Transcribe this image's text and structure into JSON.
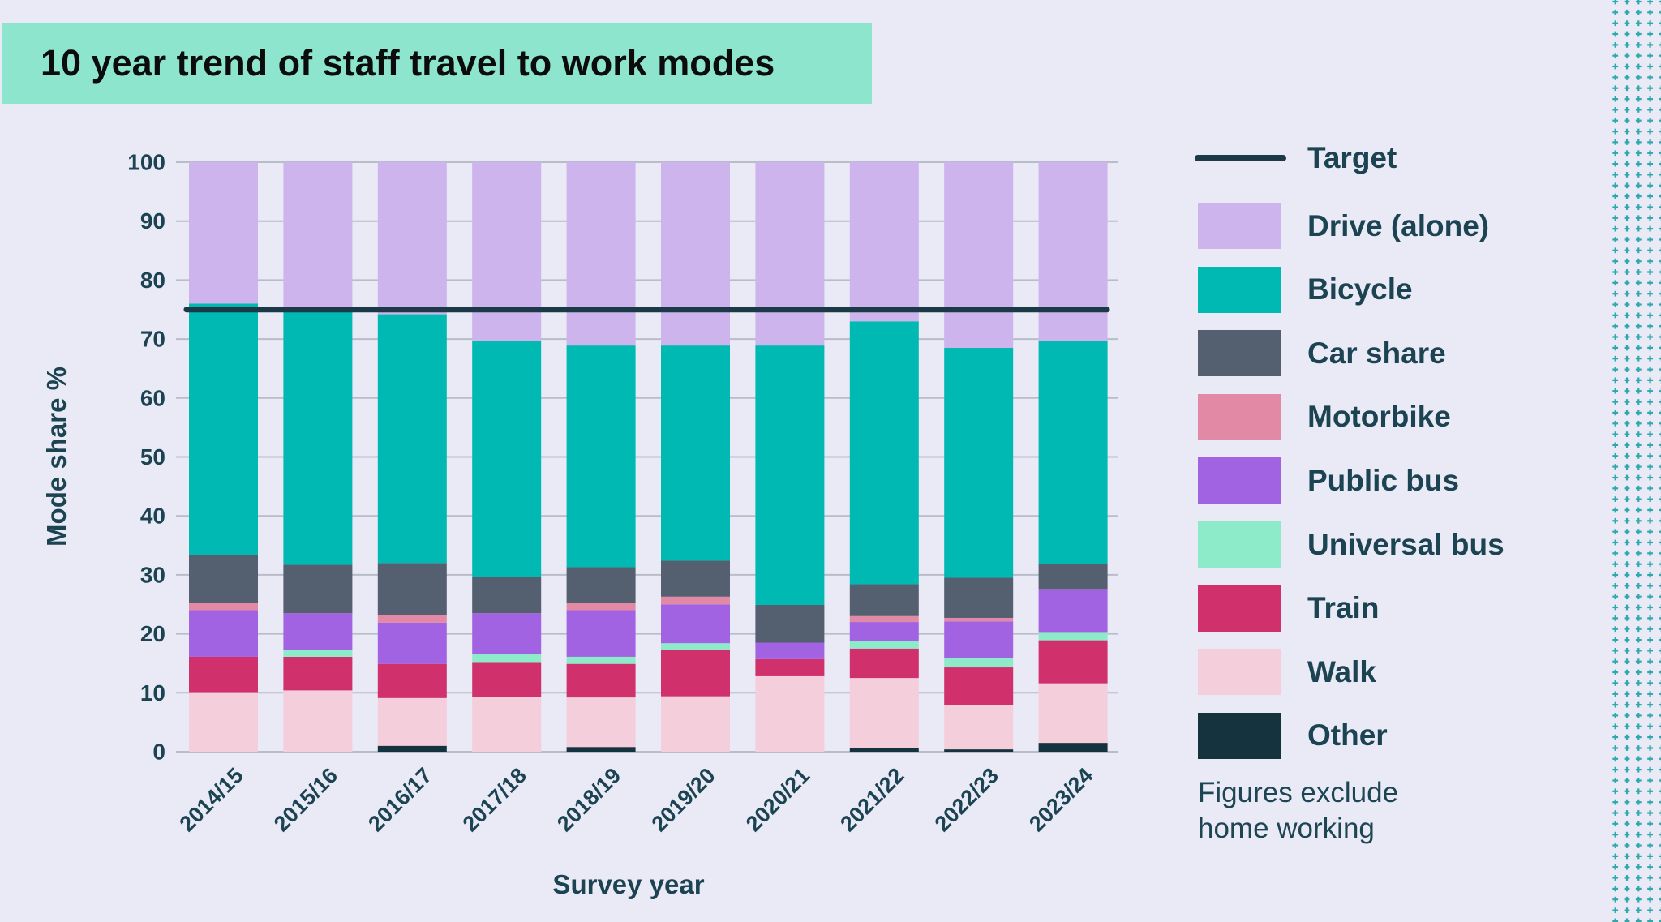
{
  "title": "10 year trend of staff travel to work modes",
  "note": "Figures exclude\nhome working",
  "colors": {
    "background": "#e9eaf6",
    "title_box": "#8ce5cc",
    "title_text": "#0c0c0c",
    "text": "#1c4352",
    "gridline": "#b9bcc9",
    "target_line": "#1b3946",
    "dots": "#2fa8ad"
  },
  "chart_data": {
    "type": "bar",
    "stacked": true,
    "units": "percent",
    "xlabel": "Survey year",
    "ylabel": "Mode share %",
    "ylim": [
      0,
      100
    ],
    "yticks": [
      0,
      10,
      20,
      30,
      40,
      50,
      60,
      70,
      80,
      90,
      100
    ],
    "grid": true,
    "legend_position": "right",
    "categories": [
      "2014/15",
      "2015/16",
      "2016/17",
      "2017/18",
      "2018/19",
      "2019/20",
      "2020/21",
      "2021/22",
      "2022/23",
      "2023/24"
    ],
    "series": [
      {
        "key": "other",
        "name": "Other",
        "color": "#14333f",
        "values": [
          0,
          0,
          1.0,
          0,
          0.8,
          0,
          0,
          0.6,
          0.4,
          1.5
        ]
      },
      {
        "key": "walk",
        "name": "Walk",
        "color": "#f4cedb",
        "values": [
          10.1,
          10.4,
          8.1,
          9.3,
          8.4,
          9.4,
          12.8,
          11.9,
          7.5,
          10.1
        ]
      },
      {
        "key": "train",
        "name": "Train",
        "color": "#d0306b",
        "values": [
          6.0,
          5.7,
          5.8,
          5.9,
          5.7,
          7.8,
          2.9,
          5.0,
          6.4,
          7.3
        ]
      },
      {
        "key": "universal-bus",
        "name": "Universal bus",
        "color": "#8debca",
        "values": [
          0,
          1.1,
          0,
          1.3,
          1.2,
          1.2,
          0,
          1.2,
          1.6,
          1.4
        ]
      },
      {
        "key": "public-bus",
        "name": "Public bus",
        "color": "#a163e2",
        "values": [
          7.9,
          6.3,
          7.0,
          7.0,
          7.9,
          6.6,
          2.8,
          3.3,
          6.2,
          7.3
        ]
      },
      {
        "key": "motorbike",
        "name": "Motorbike",
        "color": "#e289a5",
        "values": [
          1.3,
          0,
          1.3,
          0,
          1.3,
          1.3,
          0,
          1.0,
          0.6,
          0
        ]
      },
      {
        "key": "car-share",
        "name": "Car share",
        "color": "#545f70",
        "values": [
          8.1,
          8.2,
          8.8,
          6.2,
          6.0,
          6.1,
          6.4,
          5.4,
          6.8,
          4.2
        ]
      },
      {
        "key": "bicycle",
        "name": "Bicycle",
        "color": "#00b9b2",
        "values": [
          42.6,
          43.0,
          42.2,
          39.9,
          37.6,
          36.5,
          44.0,
          44.6,
          39.0,
          37.9
        ]
      },
      {
        "key": "drive",
        "name": "Drive (alone)",
        "color": "#cdb4ec",
        "values": [
          24.0,
          25.3,
          25.8,
          30.4,
          31.1,
          31.1,
          31.1,
          27.0,
          31.5,
          30.3
        ]
      }
    ],
    "target": {
      "label": "Target",
      "value": 75
    }
  },
  "legend": {
    "items": [
      {
        "label": "Target",
        "type": "line",
        "color": "#1b3946"
      },
      {
        "label": "Drive (alone)",
        "type": "box",
        "color": "#cdb4ec"
      },
      {
        "label": "Bicycle",
        "type": "box",
        "color": "#00b9b2"
      },
      {
        "label": "Car share",
        "type": "box",
        "color": "#545f70"
      },
      {
        "label": "Motorbike",
        "type": "box",
        "color": "#e289a5"
      },
      {
        "label": "Public bus",
        "type": "box",
        "color": "#a163e2"
      },
      {
        "label": "Universal bus",
        "type": "box",
        "color": "#8debca"
      },
      {
        "label": "Train",
        "type": "box",
        "color": "#d0306b"
      },
      {
        "label": "Walk",
        "type": "box",
        "color": "#f4cedb"
      },
      {
        "label": "Other",
        "type": "box",
        "color": "#14333f"
      }
    ]
  }
}
